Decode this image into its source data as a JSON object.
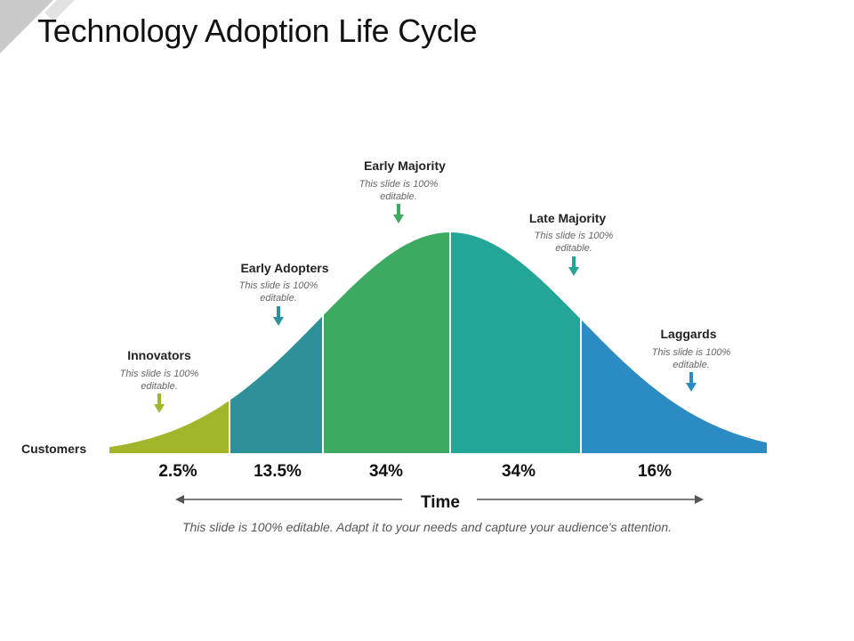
{
  "page": {
    "title": "Technology Adoption Life Cycle",
    "footer": "This slide is 100% editable. Adapt it to your needs and capture your audience's attention."
  },
  "chart_data": {
    "type": "area",
    "y_label": "Customers",
    "x_label": "Time",
    "segments": [
      {
        "name": "Innovators",
        "desc": "This slide is 100% editable.",
        "value": 2.5,
        "value_label": "2.5%",
        "color": "#a3b52b",
        "arrow_color": "#a3b52b"
      },
      {
        "name": "Early Adopters",
        "desc": "This slide is 100% editable.",
        "value": 13.5,
        "value_label": "13.5%",
        "color": "#2e9199",
        "arrow_color": "#2e9199"
      },
      {
        "name": "Early Majority",
        "desc": "This slide is 100% editable.",
        "value": 34,
        "value_label": "34%",
        "color": "#3daa62",
        "arrow_color": "#3daa62"
      },
      {
        "name": "Late Majority",
        "desc": "This slide is 100% editable.",
        "value": 34,
        "value_label": "34%",
        "color": "#23a697",
        "arrow_color": "#23a697"
      },
      {
        "name": "Laggards",
        "desc": "This slide is 100% editable.",
        "value": 16,
        "value_label": "16%",
        "color": "#2a8cc2",
        "arrow_color": "#2a8cc2"
      }
    ]
  }
}
